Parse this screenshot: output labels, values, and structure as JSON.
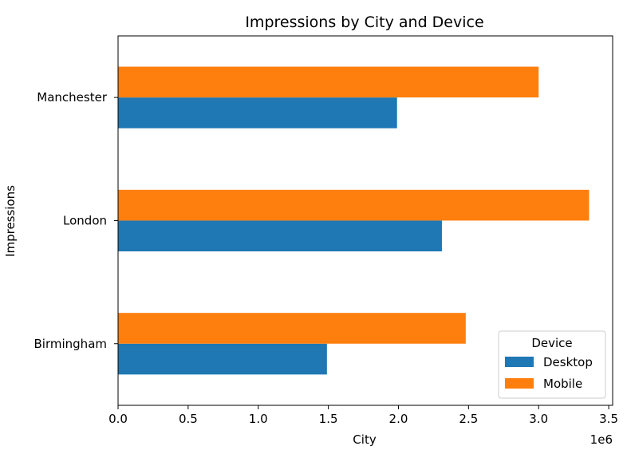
{
  "chart_data": {
    "type": "bar",
    "orientation": "horizontal",
    "title": "Impressions by City and Device",
    "xlabel": "City",
    "ylabel": "Impressions",
    "x_offset_label": "1e6",
    "categories": [
      "Birmingham",
      "London",
      "Manchester"
    ],
    "series": [
      {
        "name": "Desktop",
        "color": "#1f77b4",
        "values": [
          1490000,
          2310000,
          1990000
        ]
      },
      {
        "name": "Mobile",
        "color": "#ff7f0e",
        "values": [
          2480000,
          3360000,
          3000000
        ]
      }
    ],
    "xlim": [
      0,
      3528000
    ],
    "xticks": [
      0,
      500000,
      1000000,
      1500000,
      2000000,
      2500000,
      3000000,
      3500000
    ],
    "xtick_labels": [
      "0.0",
      "0.5",
      "1.0",
      "1.5",
      "2.0",
      "2.5",
      "3.0",
      "3.5"
    ],
    "grid": false,
    "legend": {
      "title": "Device",
      "placement": "lower-right"
    }
  }
}
